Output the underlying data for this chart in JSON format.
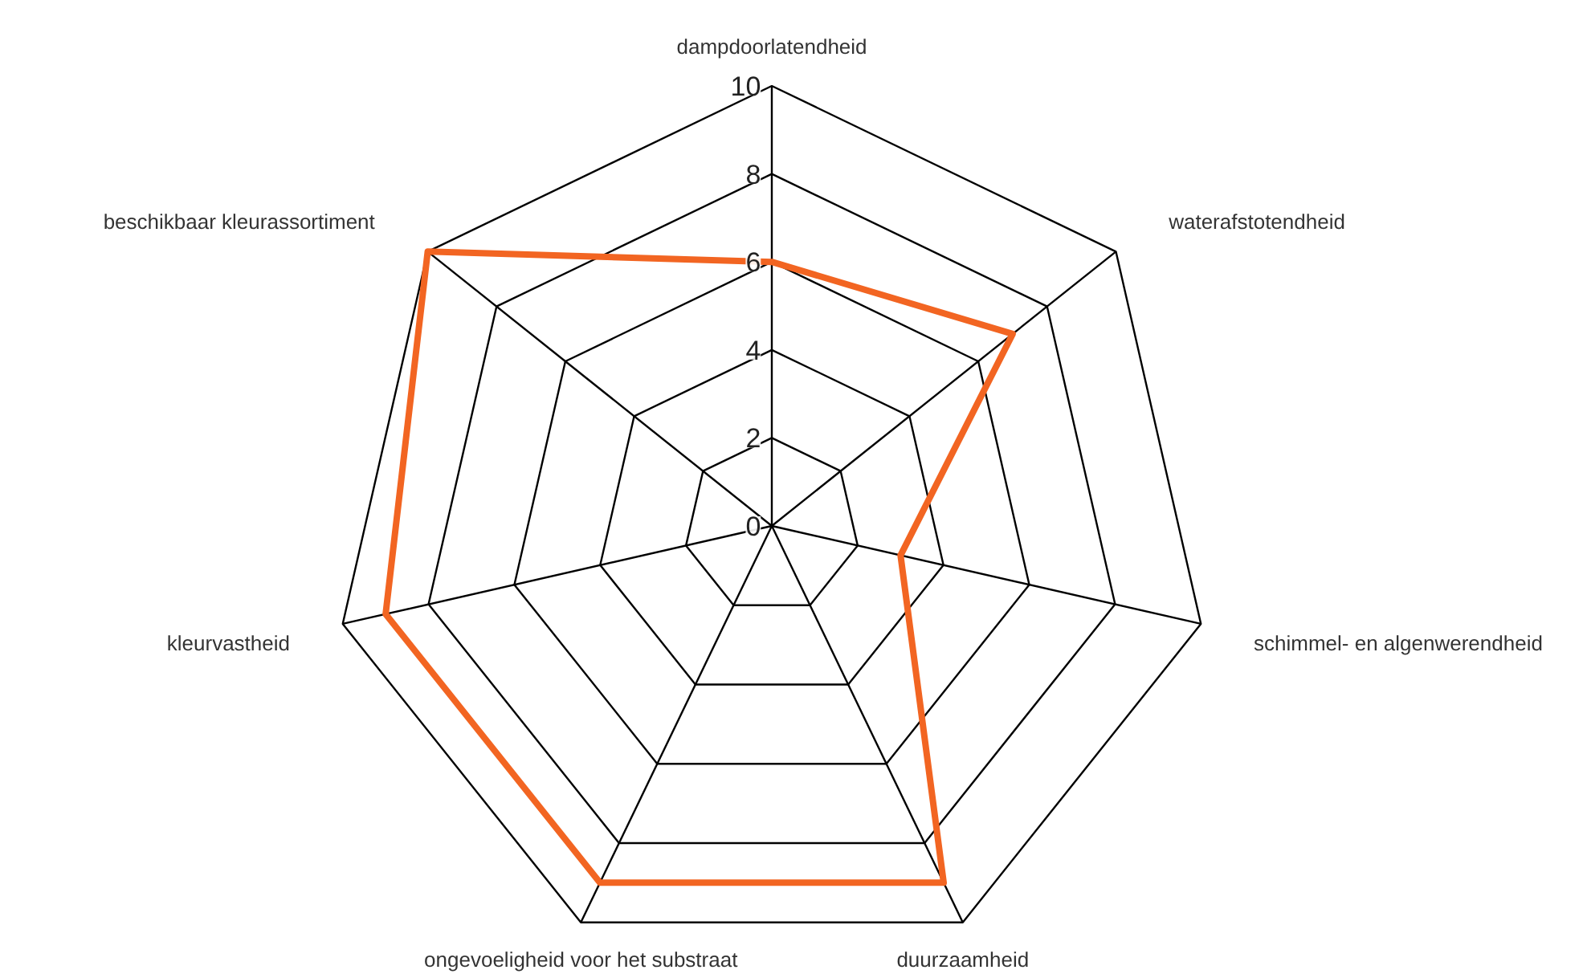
{
  "chart_data": {
    "type": "radar",
    "categories": [
      "dampdoorlatendheid",
      "waterafstotendheid",
      "schimmel- en algenwerendheid",
      "duurzaamheid",
      "ongevoeligheid voor het substraat",
      "kleurvastheid",
      "beschikbaar kleurassortiment"
    ],
    "series": [
      {
        "color": "#f26522",
        "values": [
          6,
          7,
          3,
          9,
          9,
          9,
          10
        ]
      }
    ],
    "ylim": [
      0,
      10
    ],
    "yticks": [
      0,
      2,
      4,
      6,
      8,
      10
    ],
    "grid": true,
    "marker": "none",
    "line_style": "solid"
  }
}
